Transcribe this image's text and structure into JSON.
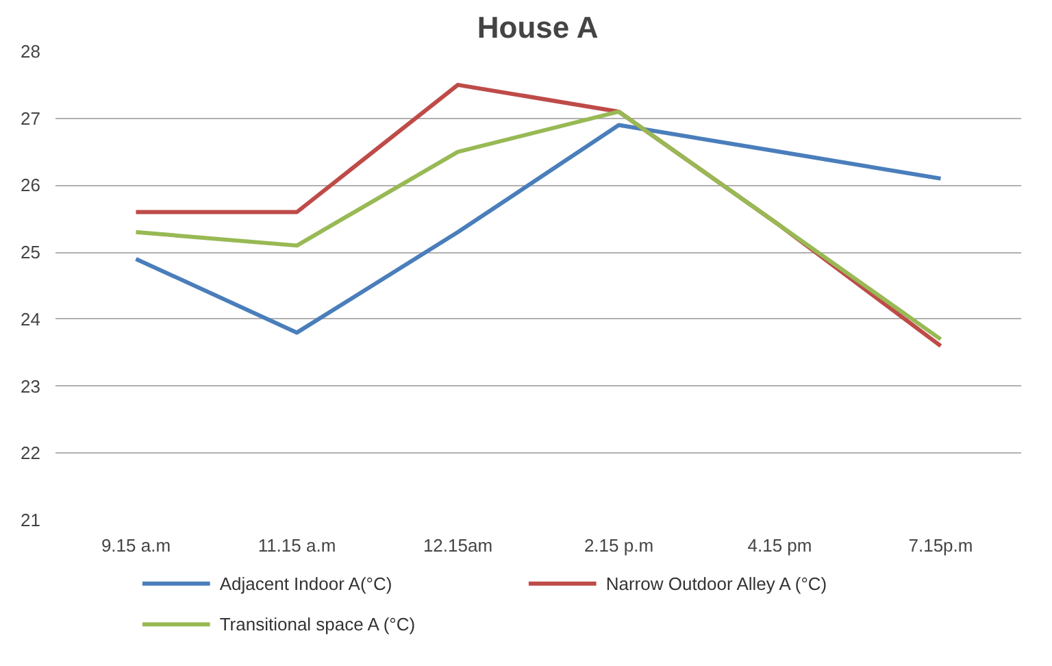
{
  "chart_data": {
    "type": "line",
    "title": "House A",
    "categories": [
      "9.15 a.m",
      "11.15 a.m",
      "12.15am",
      "2.15 p.m",
      "4.15 pm",
      "7.15p.m"
    ],
    "series": [
      {
        "name": "Adjacent Indoor A(°C)",
        "color": "#4a7ebb",
        "values": [
          24.9,
          23.8,
          25.3,
          26.9,
          26.5,
          26.1
        ]
      },
      {
        "name": "Narrow Outdoor Alley A (°C)",
        "color": "#be4b48",
        "values": [
          25.6,
          25.6,
          27.5,
          27.1,
          25.4,
          23.6
        ]
      },
      {
        "name": "Transitional space A (°C)",
        "color": "#98b954",
        "values": [
          25.3,
          25.1,
          26.5,
          27.1,
          25.4,
          23.7
        ]
      }
    ],
    "ylim": [
      21,
      28
    ],
    "yticks": [
      21,
      22,
      23,
      24,
      25,
      26,
      27,
      28
    ],
    "grid": "y",
    "legend": "bottom",
    "marker": "none",
    "line_style": "solid"
  }
}
